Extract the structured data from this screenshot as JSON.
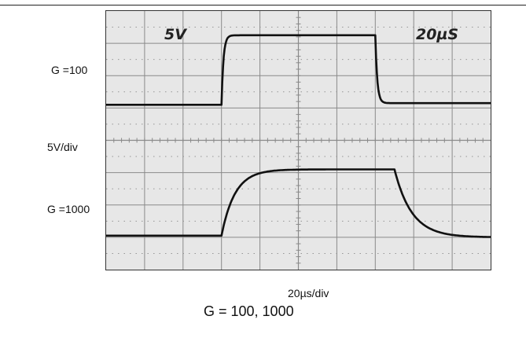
{
  "labels": {
    "gain_100": "G =100",
    "volts_per_div": "5V/div",
    "gain_1000": "G =1000",
    "time_per_div": "20µs/div",
    "caption": "G = 100, 1000"
  },
  "screen_annotations": {
    "volts": "5V",
    "time": "20µS"
  },
  "colors": {
    "screen_background": "#e7e7e7",
    "grid": "#8a8a8a",
    "trace": "#111111"
  },
  "chart_data": {
    "type": "line",
    "title": "G = 100, 1000",
    "xlabel": "20µs/div",
    "ylabel": "5V/div",
    "x_units": "divisions (20µs/div)",
    "y_units": "divisions (5V/div)",
    "xlim": [
      0,
      10
    ],
    "ylim": [
      0,
      8
    ],
    "grid": true,
    "series": [
      {
        "name": "G =100",
        "shape": "step",
        "x": [
          0.0,
          3.0,
          3.0,
          3.15,
          7.0,
          7.0,
          7.1,
          10.0
        ],
        "y": [
          5.1,
          5.1,
          7.1,
          7.25,
          7.25,
          5.5,
          5.2,
          5.15
        ],
        "rise_time_constant": 0.05,
        "fall_time_constant": 0.05
      },
      {
        "name": "G =1000",
        "shape": "exponential-step",
        "x": [
          0.0,
          3.0,
          3.5,
          4.0,
          5.0,
          7.0,
          7.5,
          8.0,
          9.0,
          10.0
        ],
        "y": [
          1.05,
          1.0,
          2.55,
          3.0,
          3.1,
          3.1,
          1.75,
          1.35,
          1.05,
          1.0
        ],
        "rise_time_constant": 0.35,
        "fall_time_constant": 0.45
      }
    ]
  }
}
